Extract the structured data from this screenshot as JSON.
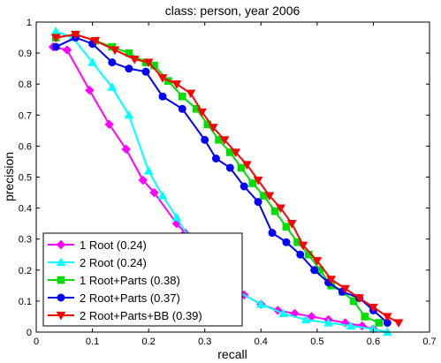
{
  "chart_data": {
    "type": "line",
    "title": "class: person, year 2006",
    "xlabel": "recall",
    "ylabel": "precision",
    "xlim": [
      0,
      0.7
    ],
    "ylim": [
      0,
      1
    ],
    "xticks": [
      "0",
      "0.1",
      "0.2",
      "0.3",
      "0.4",
      "0.5",
      "0.6",
      "0.7"
    ],
    "yticks": [
      "0",
      "0.1",
      "0.2",
      "0.3",
      "0.4",
      "0.5",
      "0.6",
      "0.7",
      "0.8",
      "0.9",
      "1"
    ],
    "legend_position": "bottom-left",
    "grid": false,
    "series": [
      {
        "name": "1 Root (0.24)",
        "color": "#ff00ff",
        "marker": "diamond",
        "x": [
          0.03,
          0.055,
          0.095,
          0.13,
          0.16,
          0.19,
          0.21,
          0.25,
          0.265,
          0.285,
          0.31,
          0.34,
          0.37,
          0.4,
          0.43,
          0.46,
          0.49,
          0.52,
          0.55,
          0.58,
          0.6
        ],
        "y": [
          0.92,
          0.91,
          0.78,
          0.67,
          0.59,
          0.49,
          0.45,
          0.35,
          0.32,
          0.26,
          0.2,
          0.15,
          0.12,
          0.09,
          0.07,
          0.06,
          0.05,
          0.04,
          0.03,
          0.02,
          0.01
        ]
      },
      {
        "name": "2 Root (0.24)",
        "color": "#00ffff",
        "marker": "triangle-up",
        "x": [
          0.035,
          0.065,
          0.1,
          0.135,
          0.165,
          0.2,
          0.225,
          0.25,
          0.27,
          0.29,
          0.32,
          0.36,
          0.4,
          0.44,
          0.48,
          0.52,
          0.56,
          0.6,
          0.625
        ],
        "y": [
          0.97,
          0.95,
          0.87,
          0.79,
          0.7,
          0.52,
          0.44,
          0.37,
          0.31,
          0.24,
          0.18,
          0.13,
          0.09,
          0.06,
          0.04,
          0.03,
          0.02,
          0.01,
          0.0
        ]
      },
      {
        "name": "1 Root+Parts (0.38)",
        "color": "#00dd00",
        "marker": "square",
        "x": [
          0.035,
          0.07,
          0.105,
          0.135,
          0.165,
          0.195,
          0.21,
          0.235,
          0.26,
          0.285,
          0.305,
          0.325,
          0.345,
          0.365,
          0.385,
          0.405,
          0.425,
          0.445,
          0.465,
          0.485,
          0.505,
          0.525,
          0.545,
          0.565,
          0.585,
          0.61
        ],
        "y": [
          0.95,
          0.96,
          0.94,
          0.92,
          0.9,
          0.87,
          0.86,
          0.81,
          0.76,
          0.72,
          0.67,
          0.62,
          0.58,
          0.53,
          0.48,
          0.44,
          0.39,
          0.34,
          0.29,
          0.25,
          0.2,
          0.15,
          0.13,
          0.1,
          0.05,
          0.03
        ]
      },
      {
        "name": "2 Root+Parts (0.37)",
        "color": "#0000ff",
        "marker": "circle",
        "x": [
          0.035,
          0.07,
          0.1,
          0.135,
          0.165,
          0.195,
          0.225,
          0.26,
          0.3,
          0.32,
          0.345,
          0.37,
          0.395,
          0.42,
          0.445,
          0.47,
          0.495,
          0.52,
          0.545,
          0.575,
          0.6,
          0.625
        ],
        "y": [
          0.92,
          0.95,
          0.93,
          0.87,
          0.85,
          0.84,
          0.76,
          0.72,
          0.62,
          0.56,
          0.53,
          0.47,
          0.42,
          0.32,
          0.29,
          0.25,
          0.2,
          0.16,
          0.13,
          0.11,
          0.07,
          0.03
        ]
      },
      {
        "name": "2 Root+Parts+BB (0.39)",
        "color": "#ff0000",
        "marker": "triangle-down",
        "x": [
          0.035,
          0.07,
          0.105,
          0.14,
          0.175,
          0.2,
          0.225,
          0.25,
          0.275,
          0.295,
          0.315,
          0.335,
          0.355,
          0.375,
          0.395,
          0.415,
          0.435,
          0.455,
          0.475,
          0.5,
          0.525,
          0.55,
          0.575,
          0.6,
          0.625,
          0.645
        ],
        "y": [
          0.95,
          0.96,
          0.94,
          0.91,
          0.88,
          0.87,
          0.82,
          0.8,
          0.77,
          0.71,
          0.66,
          0.62,
          0.58,
          0.54,
          0.49,
          0.44,
          0.4,
          0.35,
          0.28,
          0.23,
          0.17,
          0.14,
          0.11,
          0.08,
          0.05,
          0.03
        ]
      }
    ]
  }
}
